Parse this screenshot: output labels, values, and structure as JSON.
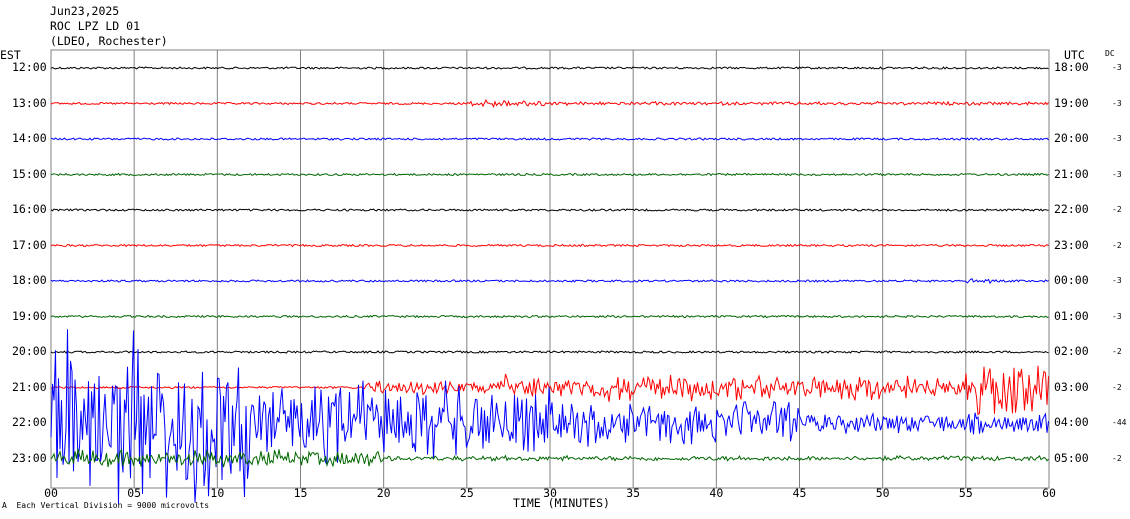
{
  "header": {
    "date": "Jun23,2025",
    "station": "ROC LPZ LD 01",
    "network": "(LDEO, Rochester)"
  },
  "left_axis_title": "EST",
  "right_axis_title": "UTC",
  "dc_title": "DC",
  "footnote_marker": "A",
  "footnote": "Each Vertical Division = 9000 microvolts",
  "colors": {
    "black": "#000000",
    "red": "#ff0000",
    "blue": "#0000ff",
    "green": "#006600",
    "grid": "#808080"
  },
  "chart_data": {
    "type": "line",
    "title": "",
    "xlabel": "TIME (MINUTES)",
    "ylabel": "",
    "xlim": [
      0,
      60
    ],
    "x_ticks": [
      "00",
      "05",
      "10",
      "15",
      "20",
      "25",
      "30",
      "35",
      "40",
      "45",
      "50",
      "55",
      "60"
    ],
    "rows": [
      {
        "est": "12:00",
        "utc": "18:00",
        "dc": "-3",
        "color": "black",
        "amplitude": 1,
        "events": []
      },
      {
        "est": "13:00",
        "utc": "19:00",
        "dc": "-3",
        "color": "red",
        "amplitude": 1,
        "events": [
          {
            "start": 25,
            "end": 30,
            "amp": 5
          },
          {
            "start": 30,
            "end": 60,
            "amp": 2
          }
        ]
      },
      {
        "est": "14:00",
        "utc": "20:00",
        "dc": "-3",
        "color": "blue",
        "amplitude": 1,
        "events": []
      },
      {
        "est": "15:00",
        "utc": "21:00",
        "dc": "-3",
        "color": "green",
        "amplitude": 1,
        "events": []
      },
      {
        "est": "16:00",
        "utc": "22:00",
        "dc": "-2",
        "color": "black",
        "amplitude": 1,
        "events": []
      },
      {
        "est": "17:00",
        "utc": "23:00",
        "dc": "-2",
        "color": "red",
        "amplitude": 1,
        "events": []
      },
      {
        "est": "18:00",
        "utc": "00:00",
        "dc": "-3",
        "color": "blue",
        "amplitude": 1,
        "events": [
          {
            "start": 55,
            "end": 57,
            "amp": 3
          }
        ]
      },
      {
        "est": "19:00",
        "utc": "01:00",
        "dc": "-3",
        "color": "green",
        "amplitude": 1,
        "events": []
      },
      {
        "est": "20:00",
        "utc": "02:00",
        "dc": "-2",
        "color": "black",
        "amplitude": 1,
        "events": []
      },
      {
        "est": "21:00",
        "utc": "03:00",
        "dc": "-2",
        "color": "red",
        "amplitude": 1,
        "events": [
          {
            "start": 18.5,
            "end": 27,
            "amp": 8
          },
          {
            "start": 27,
            "end": 55,
            "amp": 15
          },
          {
            "start": 55,
            "end": 60,
            "amp": 30
          }
        ]
      },
      {
        "est": "22:00",
        "utc": "04:00",
        "dc": "-44",
        "color": "blue",
        "amplitude": 1,
        "events": [
          {
            "start": 0,
            "end": 12,
            "amp": 95
          },
          {
            "start": 12,
            "end": 30,
            "amp": 45
          },
          {
            "start": 30,
            "end": 45,
            "amp": 25
          },
          {
            "start": 45,
            "end": 60,
            "amp": 12
          }
        ]
      },
      {
        "est": "23:00",
        "utc": "05:00",
        "dc": "-2",
        "color": "green",
        "amplitude": 1,
        "events": [
          {
            "start": 0,
            "end": 20,
            "amp": 10
          },
          {
            "start": 20,
            "end": 60,
            "amp": 3
          }
        ]
      }
    ]
  }
}
